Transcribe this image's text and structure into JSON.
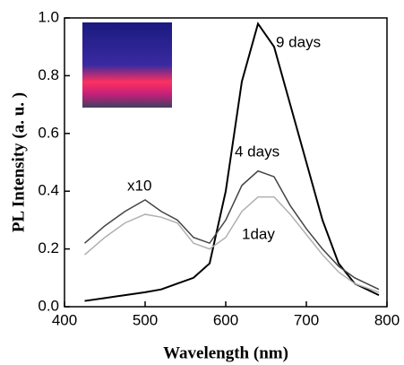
{
  "chart_data": {
    "type": "line",
    "xlabel": "Wavelength (nm)",
    "ylabel": "PL Intensity (a. u. )",
    "x": [
      425,
      450,
      475,
      500,
      520,
      540,
      560,
      580,
      600,
      620,
      640,
      660,
      680,
      700,
      720,
      740,
      760,
      790
    ],
    "series": [
      {
        "name": "9 days",
        "color": "#000000",
        "values": [
          0.02,
          0.03,
          0.04,
          0.05,
          0.06,
          0.08,
          0.1,
          0.15,
          0.4,
          0.78,
          0.98,
          0.9,
          0.7,
          0.5,
          0.3,
          0.15,
          0.08,
          0.04
        ]
      },
      {
        "name": "4 days",
        "color": "#444444",
        "values": [
          0.22,
          0.28,
          0.33,
          0.37,
          0.33,
          0.3,
          0.24,
          0.22,
          0.3,
          0.42,
          0.47,
          0.45,
          0.35,
          0.27,
          0.2,
          0.14,
          0.1,
          0.06
        ]
      },
      {
        "name": "1day",
        "color": "#b0b0b0",
        "values": [
          0.18,
          0.24,
          0.29,
          0.32,
          0.31,
          0.29,
          0.22,
          0.2,
          0.24,
          0.33,
          0.38,
          0.38,
          0.32,
          0.25,
          0.18,
          0.12,
          0.08,
          0.05
        ]
      }
    ],
    "annotation": "x10",
    "xlim": [
      400,
      800
    ],
    "xticks": [
      400,
      500,
      600,
      700,
      800
    ],
    "ylim": [
      0,
      1
    ],
    "yticks": [
      {
        "value": 0,
        "label": "0.0"
      },
      0.2,
      0.4,
      0.6,
      0.8,
      {
        "value": 1,
        "label": "1.0"
      }
    ]
  }
}
